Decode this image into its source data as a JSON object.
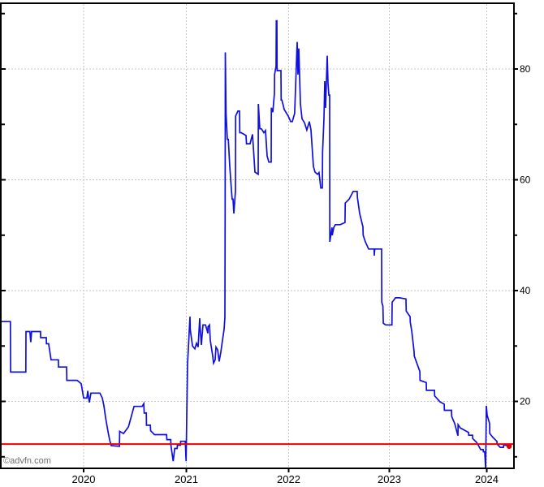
{
  "watermark": "©advfn.com",
  "chart_data": {
    "type": "line",
    "title": "",
    "legend": false,
    "grid": true,
    "x_axis": {
      "labels": [
        "2020",
        "2021",
        "2022",
        "2023",
        "2024"
      ],
      "values": [
        2020,
        2021,
        2022,
        2023,
        2024
      ],
      "range": [
        2019.186,
        2024.288
      ]
    },
    "y_axis": {
      "side": "right",
      "labels": [
        "20",
        "40",
        "60",
        "80"
      ],
      "values": [
        20,
        40,
        60,
        80
      ],
      "minor_values": [
        10,
        30,
        50,
        70,
        90
      ],
      "range": [
        7.8,
        92.0
      ]
    },
    "colors": {
      "series": "#0f0fe0",
      "reference": "#ee0000",
      "marker": "#e00000",
      "grid": "#c2c7c5",
      "axis": "#000000",
      "background": "#ffffff",
      "watermark_text": "#6f6f6f"
    },
    "reference_line": {
      "value": 12.3,
      "color": "#ee0000"
    },
    "end_marker": {
      "x": 2024.23,
      "value": 11.9,
      "color": "#e00000"
    },
    "series": [
      {
        "name": "price",
        "color": "#0f0fe0",
        "points": [
          [
            2019.186,
            34.4
          ],
          [
            2019.287,
            34.4
          ],
          [
            2019.289,
            25.3
          ],
          [
            2019.437,
            25.3
          ],
          [
            2019.439,
            32.6
          ],
          [
            2019.477,
            32.6
          ],
          [
            2019.485,
            30.7
          ],
          [
            2019.493,
            32.6
          ],
          [
            2019.58,
            32.6
          ],
          [
            2019.582,
            31.5
          ],
          [
            2019.636,
            31.5
          ],
          [
            2019.638,
            30.4
          ],
          [
            2019.659,
            30.4
          ],
          [
            2019.683,
            27.5
          ],
          [
            2019.754,
            27.5
          ],
          [
            2019.756,
            26.2
          ],
          [
            2019.834,
            26.2
          ],
          [
            2019.836,
            23.8
          ],
          [
            2019.937,
            23.8
          ],
          [
            2019.976,
            23.2
          ],
          [
            2020.0,
            20.6
          ],
          [
            2020.032,
            20.6
          ],
          [
            2020.04,
            21.9
          ],
          [
            2020.055,
            19.8
          ],
          [
            2020.071,
            21.5
          ],
          [
            2020.158,
            21.5
          ],
          [
            2020.182,
            20.6
          ],
          [
            2020.198,
            19.2
          ],
          [
            2020.214,
            17.0
          ],
          [
            2020.238,
            14.5
          ],
          [
            2020.254,
            13.0
          ],
          [
            2020.269,
            12.0
          ],
          [
            2020.349,
            11.9
          ],
          [
            2020.351,
            14.6
          ],
          [
            2020.388,
            14.2
          ],
          [
            2020.436,
            15.4
          ],
          [
            2020.491,
            19.1
          ],
          [
            2020.57,
            19.1
          ],
          [
            2020.586,
            19.6
          ],
          [
            2020.59,
            17.9
          ],
          [
            2020.61,
            17.9
          ],
          [
            2020.612,
            15.7
          ],
          [
            2020.65,
            15.7
          ],
          [
            2020.652,
            14.7
          ],
          [
            2020.689,
            14.0
          ],
          [
            2020.808,
            14.0
          ],
          [
            2020.81,
            13.1
          ],
          [
            2020.848,
            13.1
          ],
          [
            2020.85,
            12.1
          ],
          [
            2020.872,
            9.2
          ],
          [
            2020.887,
            11.5
          ],
          [
            2020.911,
            11.5
          ],
          [
            2020.913,
            12.1
          ],
          [
            2020.943,
            12.1
          ],
          [
            2020.945,
            12.8
          ],
          [
            2020.99,
            12.8
          ],
          [
            2020.998,
            9.2
          ],
          [
            2021.012,
            26.8
          ],
          [
            2021.036,
            35.3
          ],
          [
            2021.038,
            33.0
          ],
          [
            2021.06,
            30.0
          ],
          [
            2021.083,
            29.5
          ],
          [
            2021.099,
            30.5
          ],
          [
            2021.115,
            29.8
          ],
          [
            2021.131,
            35.0
          ],
          [
            2021.133,
            33.8
          ],
          [
            2021.147,
            30.2
          ],
          [
            2021.163,
            33.8
          ],
          [
            2021.187,
            33.8
          ],
          [
            2021.21,
            32.3
          ],
          [
            2021.212,
            33.5
          ],
          [
            2021.226,
            33.8
          ],
          [
            2021.234,
            31.0
          ],
          [
            2021.258,
            28.2
          ],
          [
            2021.266,
            26.9
          ],
          [
            2021.282,
            27.5
          ],
          [
            2021.29,
            29.8
          ],
          [
            2021.306,
            29.3
          ],
          [
            2021.321,
            27.2
          ],
          [
            2021.337,
            28.9
          ],
          [
            2021.353,
            31.0
          ],
          [
            2021.369,
            33.0
          ],
          [
            2021.377,
            35.2
          ],
          [
            2021.379,
            55.0
          ],
          [
            2021.381,
            83.0
          ],
          [
            2021.385,
            77.0
          ],
          [
            2021.388,
            72.0
          ],
          [
            2021.401,
            67.3
          ],
          [
            2021.41,
            67.3
          ],
          [
            2021.425,
            62.4
          ],
          [
            2021.44,
            58.4
          ],
          [
            2021.448,
            56.5
          ],
          [
            2021.456,
            56.5
          ],
          [
            2021.464,
            53.9
          ],
          [
            2021.48,
            58.0
          ],
          [
            2021.482,
            71.5
          ],
          [
            2021.504,
            72.4
          ],
          [
            2021.52,
            72.4
          ],
          [
            2021.522,
            68.5
          ],
          [
            2021.536,
            68.5
          ],
          [
            2021.583,
            68.0
          ],
          [
            2021.588,
            66.5
          ],
          [
            2021.623,
            66.5
          ],
          [
            2021.647,
            68.2
          ],
          [
            2021.671,
            61.4
          ],
          [
            2021.702,
            61.0
          ],
          [
            2021.704,
            73.7
          ],
          [
            2021.718,
            69.2
          ],
          [
            2021.734,
            69.2
          ],
          [
            2021.758,
            68.5
          ],
          [
            2021.774,
            68.9
          ],
          [
            2021.79,
            64.3
          ],
          [
            2021.806,
            63.2
          ],
          [
            2021.829,
            63.2
          ],
          [
            2021.831,
            73.0
          ],
          [
            2021.845,
            72.2
          ],
          [
            2021.861,
            75.6
          ],
          [
            2021.863,
            79.0
          ],
          [
            2021.877,
            80.5
          ],
          [
            2021.879,
            88.7
          ],
          [
            2021.885,
            88.7
          ],
          [
            2021.887,
            79.7
          ],
          [
            2021.925,
            79.7
          ],
          [
            2021.927,
            74.4
          ],
          [
            2021.933,
            74.4
          ],
          [
            2021.948,
            73.4
          ],
          [
            2021.956,
            72.7
          ],
          [
            2021.996,
            71.5
          ],
          [
            2022.02,
            70.5
          ],
          [
            2022.036,
            70.5
          ],
          [
            2022.06,
            72.0
          ],
          [
            2022.085,
            84.9
          ],
          [
            2022.093,
            79.0
          ],
          [
            2022.101,
            83.7
          ],
          [
            2022.117,
            73.7
          ],
          [
            2022.133,
            71.0
          ],
          [
            2022.157,
            70.3
          ],
          [
            2022.181,
            69.0
          ],
          [
            2022.206,
            70.5
          ],
          [
            2022.222,
            69.0
          ],
          [
            2022.246,
            62.4
          ],
          [
            2022.262,
            61.4
          ],
          [
            2022.286,
            61.0
          ],
          [
            2022.302,
            61.3
          ],
          [
            2022.319,
            58.5
          ],
          [
            2022.335,
            58.5
          ],
          [
            2022.337,
            65.0
          ],
          [
            2022.351,
            71.0
          ],
          [
            2022.359,
            77.8
          ],
          [
            2022.367,
            73.0
          ],
          [
            2022.383,
            82.4
          ],
          [
            2022.391,
            77.4
          ],
          [
            2022.399,
            75.3
          ],
          [
            2022.407,
            75.3
          ],
          [
            2022.409,
            48.8
          ],
          [
            2022.431,
            51.4
          ],
          [
            2022.433,
            50.0
          ],
          [
            2022.448,
            51.4
          ],
          [
            2022.464,
            51.9
          ],
          [
            2022.512,
            51.9
          ],
          [
            2022.56,
            52.3
          ],
          [
            2022.562,
            55.8
          ],
          [
            2022.601,
            56.5
          ],
          [
            2022.641,
            57.9
          ],
          [
            2022.681,
            57.9
          ],
          [
            2022.683,
            56.8
          ],
          [
            2022.706,
            53.9
          ],
          [
            2022.738,
            51.5
          ],
          [
            2022.74,
            50.0
          ],
          [
            2022.762,
            48.8
          ],
          [
            2022.794,
            47.5
          ],
          [
            2022.849,
            47.5
          ],
          [
            2022.851,
            46.3
          ],
          [
            2022.855,
            47.5
          ],
          [
            2022.867,
            47.5
          ],
          [
            2022.923,
            47.5
          ],
          [
            2022.925,
            37.9
          ],
          [
            2022.936,
            37.2
          ],
          [
            2022.94,
            34.1
          ],
          [
            2022.964,
            33.8
          ],
          [
            2023.027,
            33.8
          ],
          [
            2023.029,
            37.9
          ],
          [
            2023.063,
            38.7
          ],
          [
            2023.104,
            38.7
          ],
          [
            2023.171,
            38.5
          ],
          [
            2023.173,
            36.3
          ],
          [
            2023.213,
            35.3
          ],
          [
            2023.215,
            34.3
          ],
          [
            2023.23,
            32.7
          ],
          [
            2023.254,
            29.0
          ],
          [
            2023.256,
            28.2
          ],
          [
            2023.313,
            25.4
          ],
          [
            2023.315,
            23.8
          ],
          [
            2023.379,
            23.4
          ],
          [
            2023.381,
            22.0
          ],
          [
            2023.463,
            22.0
          ],
          [
            2023.465,
            21.0
          ],
          [
            2023.521,
            19.9
          ],
          [
            2023.563,
            19.5
          ],
          [
            2023.565,
            18.4
          ],
          [
            2023.638,
            18.4
          ],
          [
            2023.64,
            17.3
          ],
          [
            2023.671,
            16.0
          ],
          [
            2023.704,
            13.8
          ],
          [
            2023.706,
            15.8
          ],
          [
            2023.729,
            15.2
          ],
          [
            2023.771,
            14.8
          ],
          [
            2023.813,
            14.4
          ],
          [
            2023.815,
            13.9
          ],
          [
            2023.854,
            13.9
          ],
          [
            2023.856,
            13.3
          ],
          [
            2023.896,
            12.6
          ],
          [
            2023.938,
            11.3
          ],
          [
            2023.963,
            11.3
          ],
          [
            2023.965,
            10.9
          ],
          [
            2023.979,
            10.9
          ],
          [
            2023.988,
            7.9
          ],
          [
            2023.996,
            19.2
          ],
          [
            2024.004,
            17.5
          ],
          [
            2024.029,
            16.0
          ],
          [
            2024.031,
            14.2
          ],
          [
            2024.063,
            13.5
          ],
          [
            2024.104,
            12.8
          ],
          [
            2024.106,
            12.3
          ],
          [
            2024.138,
            11.7
          ],
          [
            2024.171,
            11.7
          ],
          [
            2024.173,
            12.1
          ],
          [
            2024.196,
            12.1
          ],
          [
            2024.221,
            11.9
          ],
          [
            2024.246,
            11.9
          ]
        ]
      }
    ]
  }
}
